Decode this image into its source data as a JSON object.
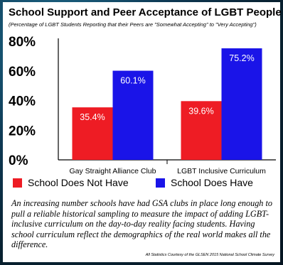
{
  "header": {
    "title": "School Support and Peer Acceptance of LGBT People",
    "subtitle": "(Percentage of LGBT Students Reporting that their Peers are \"Somewhat Accepting\" to \"Very Accepting\")"
  },
  "caption": "An increasing number schools have had GSA clubs in place long enough to pull a reliable historical sampling to measure the impact of adding LGBT-inclusive curriculum on the day-to-day reality facing students. Having school curriculum reflect the demographics of the real world makes all the difference.",
  "credit": "All Statistics Courtesy of the GLSEN 2015 National School Climate Survey",
  "colors": {
    "not_have": "#ee1c24",
    "have": "#1a14e8"
  },
  "chart_data": {
    "type": "bar",
    "categories": [
      "Gay Straight Alliance Club",
      "LGBT Inclusive Curriculum"
    ],
    "series": [
      {
        "name": "School Does Not Have",
        "values": [
          35.4,
          39.6
        ],
        "labels": [
          "35.4%",
          "39.6%"
        ]
      },
      {
        "name": "School Does Have",
        "values": [
          60.1,
          75.2
        ],
        "labels": [
          "60.1%",
          "75.2%"
        ]
      }
    ],
    "yticks": [
      "0%",
      "20%",
      "40%",
      "60%",
      "80%"
    ],
    "ylim": [
      0,
      80
    ],
    "grid": false,
    "legend_position": "bottom"
  }
}
